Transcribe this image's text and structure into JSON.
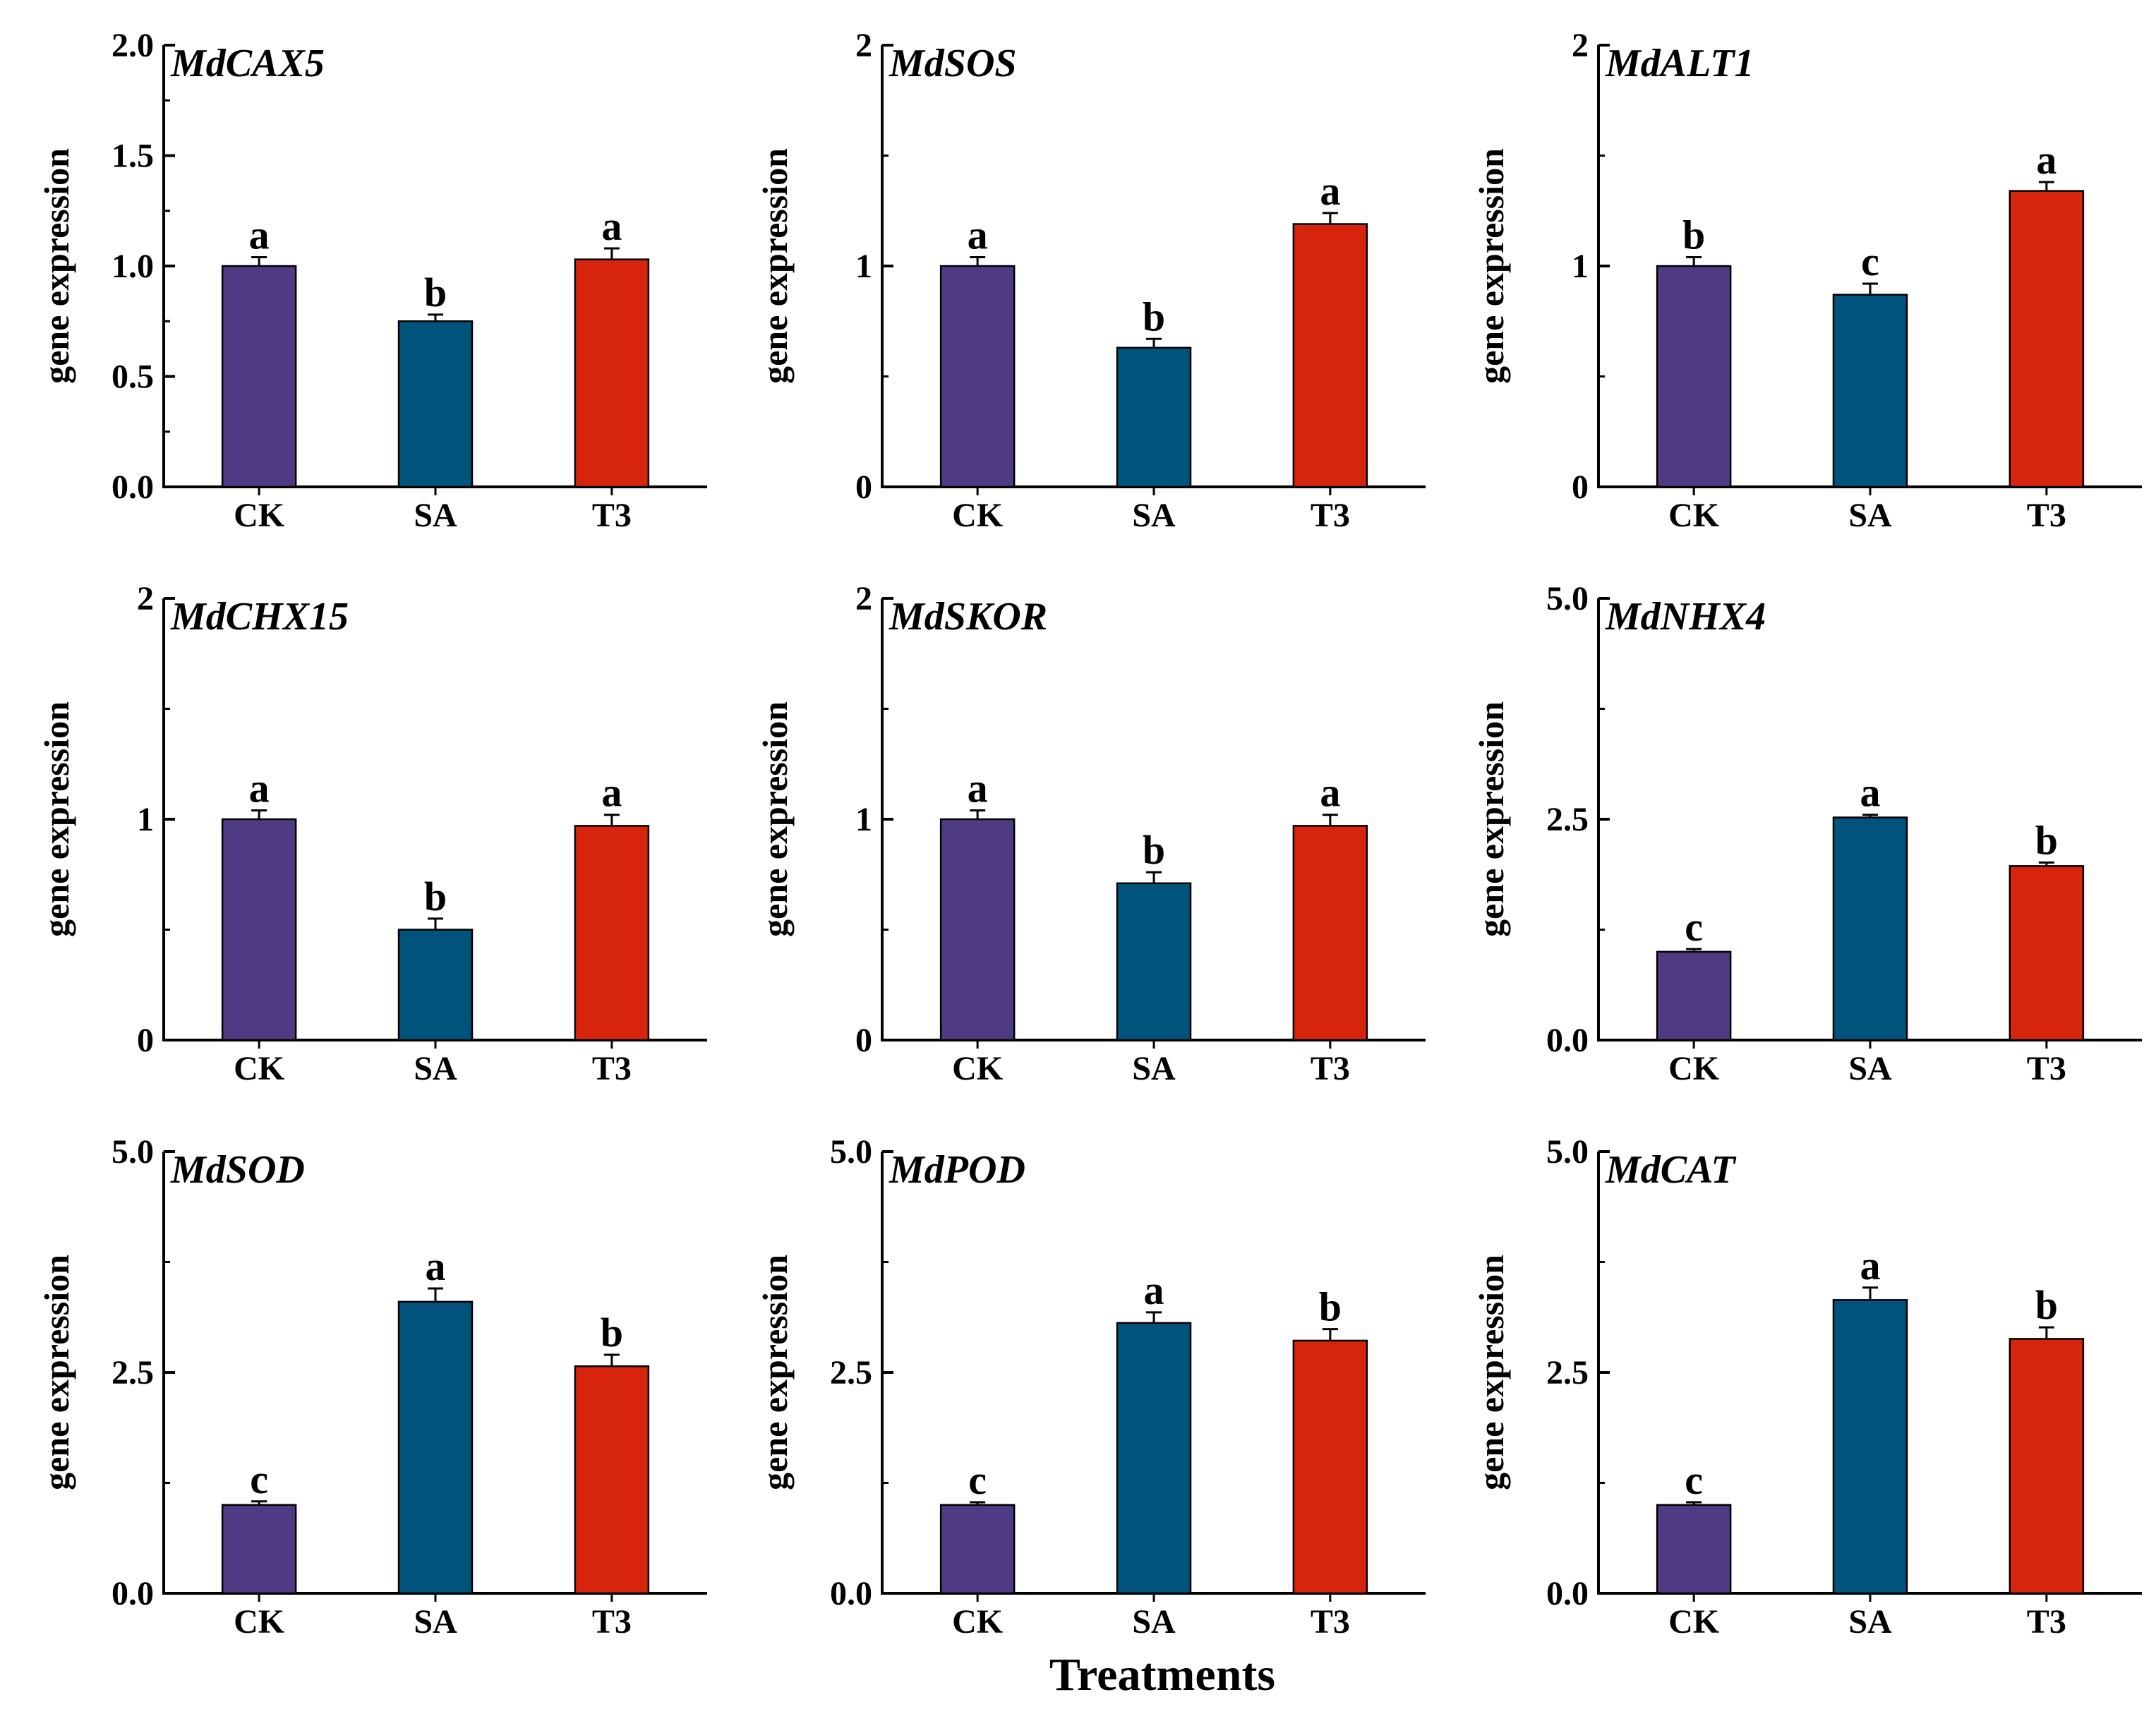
{
  "figure": {
    "xlabel": "Treatments"
  },
  "colors": {
    "CK": "#4f3b83",
    "SA": "#00547c",
    "T3": "#d7240d",
    "axis": "#000000"
  },
  "chart_data": [
    {
      "type": "bar",
      "title": "MdCAX5",
      "categories": [
        "CK",
        "SA",
        "T3"
      ],
      "values": [
        1.0,
        0.75,
        1.03
      ],
      "errors": [
        0.04,
        0.03,
        0.05
      ],
      "letters": [
        "a",
        "b",
        "a"
      ],
      "ylabel": "gene expression",
      "ylim": [
        0,
        2.0
      ],
      "yticks": [
        0,
        0.5,
        1.0,
        1.5,
        2.0
      ],
      "ytick_labels": [
        "0.0",
        "0.5",
        "1.0",
        "1.5",
        "2.0"
      ]
    },
    {
      "type": "bar",
      "title": "MdSOS",
      "categories": [
        "CK",
        "SA",
        "T3"
      ],
      "values": [
        1.0,
        0.63,
        1.19
      ],
      "errors": [
        0.04,
        0.04,
        0.05
      ],
      "letters": [
        "a",
        "b",
        "a"
      ],
      "ylabel": "gene expression",
      "ylim": [
        0,
        2
      ],
      "yticks": [
        0,
        1,
        2
      ],
      "ytick_labels": [
        "0",
        "1",
        "2"
      ]
    },
    {
      "type": "bar",
      "title": "MdALT1",
      "categories": [
        "CK",
        "SA",
        "T3"
      ],
      "values": [
        1.0,
        0.87,
        1.34
      ],
      "errors": [
        0.04,
        0.05,
        0.04
      ],
      "letters": [
        "b",
        "c",
        "a"
      ],
      "ylabel": "gene expression",
      "ylim": [
        0,
        2
      ],
      "yticks": [
        0,
        1,
        2
      ],
      "ytick_labels": [
        "0",
        "1",
        "2"
      ]
    },
    {
      "type": "bar",
      "title": "MdCHX15",
      "categories": [
        "CK",
        "SA",
        "T3"
      ],
      "values": [
        1.0,
        0.5,
        0.97
      ],
      "errors": [
        0.04,
        0.05,
        0.05
      ],
      "letters": [
        "a",
        "b",
        "a"
      ],
      "ylabel": "gene expression",
      "ylim": [
        0,
        2
      ],
      "yticks": [
        0,
        1,
        2
      ],
      "ytick_labels": [
        "0",
        "1",
        "2"
      ]
    },
    {
      "type": "bar",
      "title": "MdSKOR",
      "categories": [
        "CK",
        "SA",
        "T3"
      ],
      "values": [
        1.0,
        0.71,
        0.97
      ],
      "errors": [
        0.04,
        0.05,
        0.05
      ],
      "letters": [
        "a",
        "b",
        "a"
      ],
      "ylabel": "gene expression",
      "ylim": [
        0,
        2
      ],
      "yticks": [
        0,
        1,
        2
      ],
      "ytick_labels": [
        "0",
        "1",
        "2"
      ]
    },
    {
      "type": "bar",
      "title": "MdNHX4",
      "categories": [
        "CK",
        "SA",
        "T3"
      ],
      "values": [
        1.0,
        2.52,
        1.97
      ],
      "errors": [
        0.03,
        0.03,
        0.04
      ],
      "letters": [
        "c",
        "a",
        "b"
      ],
      "ylabel": "gene expression",
      "ylim": [
        0,
        5.0
      ],
      "yticks": [
        0,
        2.5,
        5.0
      ],
      "ytick_labels": [
        "0.0",
        "2.5",
        "5.0"
      ]
    },
    {
      "type": "bar",
      "title": "MdSOD",
      "categories": [
        "CK",
        "SA",
        "T3"
      ],
      "values": [
        1.0,
        3.3,
        2.57
      ],
      "errors": [
        0.04,
        0.15,
        0.13
      ],
      "letters": [
        "c",
        "a",
        "b"
      ],
      "ylabel": "gene expression",
      "ylim": [
        0,
        5.0
      ],
      "yticks": [
        0,
        2.5,
        5.0
      ],
      "ytick_labels": [
        "0.0",
        "2.5",
        "5.0"
      ]
    },
    {
      "type": "bar",
      "title": "MdPOD",
      "categories": [
        "CK",
        "SA",
        "T3"
      ],
      "values": [
        1.0,
        3.06,
        2.86
      ],
      "errors": [
        0.03,
        0.12,
        0.13
      ],
      "letters": [
        "c",
        "a",
        "b"
      ],
      "ylabel": "gene expression",
      "ylim": [
        0,
        5.0
      ],
      "yticks": [
        0,
        2.5,
        5.0
      ],
      "ytick_labels": [
        "0.0",
        "2.5",
        "5.0"
      ]
    },
    {
      "type": "bar",
      "title": "MdCAT",
      "categories": [
        "CK",
        "SA",
        "T3"
      ],
      "values": [
        1.0,
        3.32,
        2.88
      ],
      "errors": [
        0.03,
        0.14,
        0.13
      ],
      "letters": [
        "c",
        "a",
        "b"
      ],
      "ylabel": "gene expression",
      "ylim": [
        0,
        5.0
      ],
      "yticks": [
        0,
        2.5,
        5.0
      ],
      "ytick_labels": [
        "0.0",
        "2.5",
        "5.0"
      ]
    }
  ]
}
